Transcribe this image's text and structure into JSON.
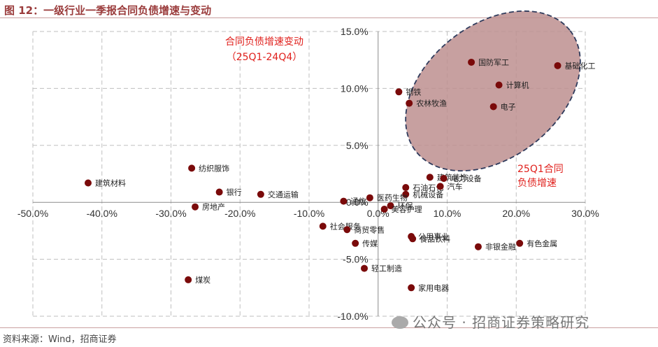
{
  "header": {
    "title": "图 12：一级行业一季报合同负债增速与变动"
  },
  "footer": {
    "source": "资料来源：Wind，招商证券",
    "watermark": "公众号 · 招商证券策略研究"
  },
  "colors": {
    "point": "#7a0a0a",
    "ellipse_fill": "#bd8f8f",
    "ellipse_stroke": "#2f3b5c",
    "annotation": "#e0201c",
    "grid": "#bfbfbf",
    "title": "#9a3b3b"
  },
  "chart_data": {
    "type": "scatter",
    "title": "",
    "xlabel": "",
    "ylabel": "",
    "xlim": [
      -0.5,
      0.3
    ],
    "ylim": [
      -0.1,
      0.15
    ],
    "x_ticks": [
      "-50.0%",
      "-40.0%",
      "-30.0%",
      "-20.0%",
      "-10.0%",
      "0.0%",
      "10.0%",
      "20.0%",
      "30.0%"
    ],
    "y_ticks": [
      "-10.0%",
      "-5.0%",
      "0.0%",
      "5.0%",
      "10.0%",
      "15.0%"
    ],
    "grid": "dashed",
    "annotations": [
      {
        "lines": [
          "合同负债增速变动",
          "（25Q1-24Q4）"
        ]
      },
      {
        "lines": [
          "25Q1合同",
          "负债增速"
        ]
      }
    ],
    "points": [
      {
        "label": "建筑材料",
        "x": -0.42,
        "y": 0.017
      },
      {
        "label": "纺织服饰",
        "x": -0.27,
        "y": 0.03
      },
      {
        "label": "银行",
        "x": -0.23,
        "y": 0.009
      },
      {
        "label": "交通运输",
        "x": -0.17,
        "y": 0.007
      },
      {
        "label": "房地产",
        "x": -0.265,
        "y": -0.004
      },
      {
        "label": "煤炭",
        "x": -0.275,
        "y": -0.068
      },
      {
        "label": "国防军工",
        "x": 0.135,
        "y": 0.123
      },
      {
        "label": "基础化工",
        "x": 0.26,
        "y": 0.12
      },
      {
        "label": "计算机",
        "x": 0.175,
        "y": 0.103
      },
      {
        "label": "电子",
        "x": 0.167,
        "y": 0.084
      },
      {
        "label": "钢铁",
        "x": 0.03,
        "y": 0.097
      },
      {
        "label": "农林牧渔",
        "x": 0.045,
        "y": 0.087
      },
      {
        "label": "建筑装饰",
        "x": 0.075,
        "y": 0.022
      },
      {
        "label": "电力设备",
        "x": 0.095,
        "y": 0.021
      },
      {
        "label": "石油石化",
        "x": 0.04,
        "y": 0.013
      },
      {
        "label": "汽车",
        "x": 0.09,
        "y": 0.014
      },
      {
        "label": "机械设备",
        "x": 0.04,
        "y": 0.007
      },
      {
        "label": "医药生物",
        "x": -0.012,
        "y": 0.004
      },
      {
        "label": "通信",
        "x": -0.05,
        "y": 0.001
      },
      {
        "label": "环保",
        "x": 0.018,
        "y": -0.003
      },
      {
        "label": "美容护理",
        "x": 0.009,
        "y": -0.006
      },
      {
        "label": "社会服务",
        "x": -0.08,
        "y": -0.021
      },
      {
        "label": "商贸零售",
        "x": -0.045,
        "y": -0.024
      },
      {
        "label": "公用事业",
        "x": 0.048,
        "y": -0.03
      },
      {
        "label": "食品饮料",
        "x": 0.05,
        "y": -0.032
      },
      {
        "label": "传媒",
        "x": -0.033,
        "y": -0.036
      },
      {
        "label": "非银金融",
        "x": 0.145,
        "y": -0.039
      },
      {
        "label": "有色金属",
        "x": 0.205,
        "y": -0.036
      },
      {
        "label": "轻工制造",
        "x": -0.02,
        "y": -0.058
      },
      {
        "label": "家用电器",
        "x": 0.048,
        "y": -0.075
      }
    ]
  }
}
